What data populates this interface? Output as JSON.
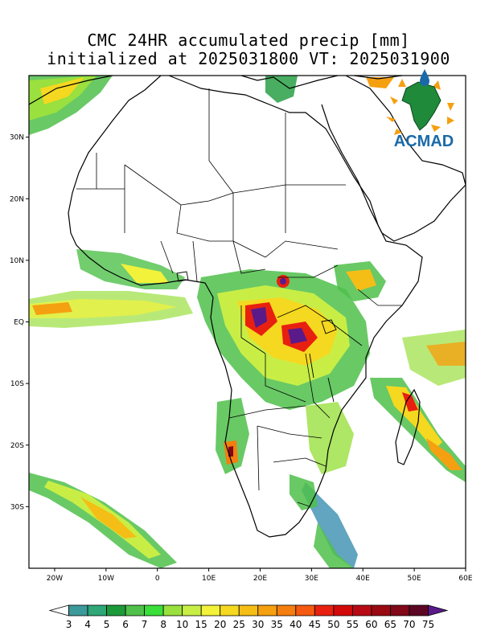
{
  "title": {
    "line1": "CMC 24HR accumulated precip [mm]",
    "line2": "initialized at 2025031800 VT: 2025031900"
  },
  "logo": {
    "text": "ACMAD"
  },
  "map": {
    "lon_range": [
      -25,
      60
    ],
    "lat_range": [
      -40,
      40
    ],
    "x_ticks": [
      "20W",
      "10W",
      "0",
      "10E",
      "20E",
      "30E",
      "40E",
      "50E",
      "60E"
    ],
    "y_ticks": [
      "30N",
      "20N",
      "10N",
      "EQ",
      "10S",
      "20S",
      "30S"
    ]
  },
  "colorbar": {
    "levels": [
      "3",
      "4",
      "5",
      "6",
      "7",
      "8",
      "10",
      "15",
      "20",
      "25",
      "30",
      "35",
      "40",
      "45",
      "50",
      "55",
      "60",
      "65",
      "70",
      "75"
    ],
    "colors": [
      "#3a8fb0",
      "#3d9a9a",
      "#2fa777",
      "#1c9a3a",
      "#4fc04a",
      "#3adf3a",
      "#9ae03e",
      "#c8ee46",
      "#f2f23a",
      "#f5d820",
      "#f5be16",
      "#f5a010",
      "#f57e10",
      "#f55a10",
      "#e82010",
      "#d20a0a",
      "#b80a14",
      "#9a0a12",
      "#800818",
      "#5c0624",
      "#5a1a8a"
    ]
  }
}
